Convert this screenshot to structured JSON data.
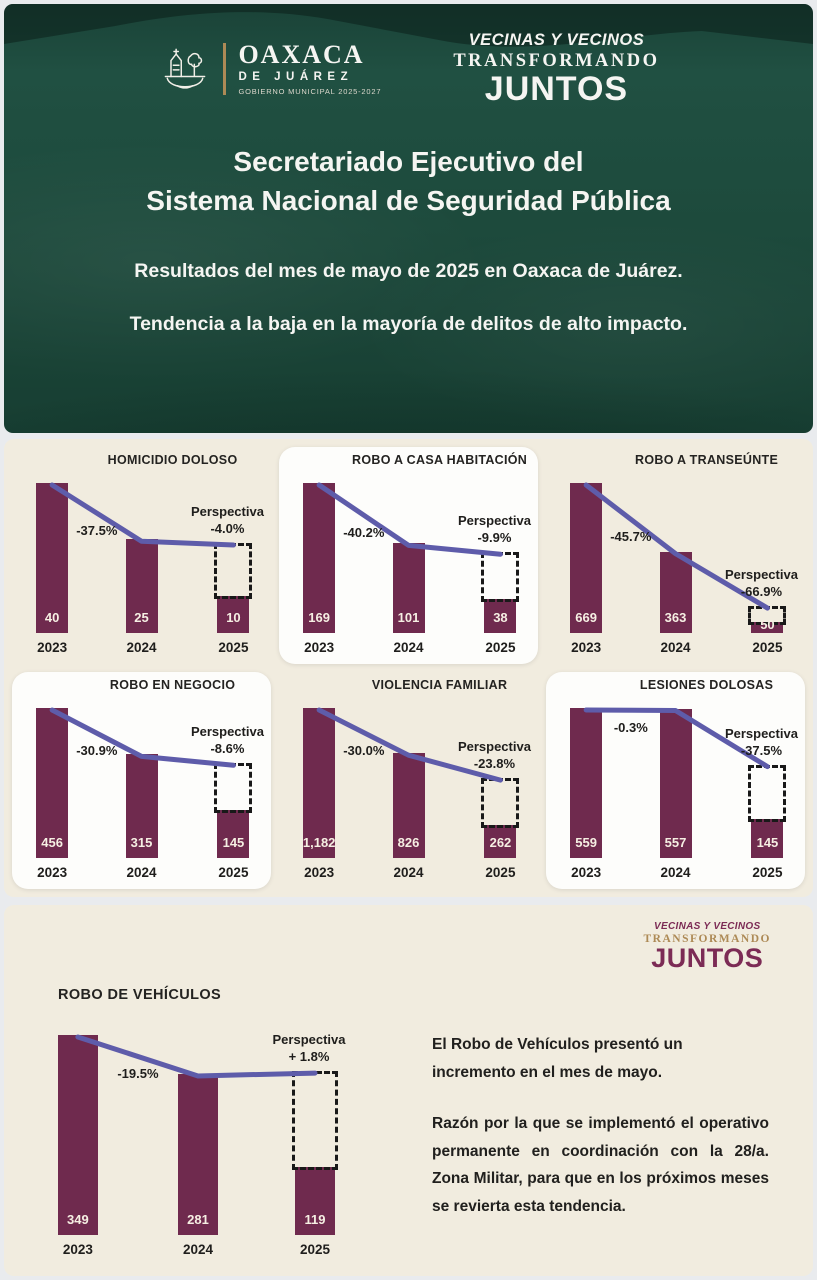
{
  "header": {
    "logo_left": {
      "name": "OAXACA",
      "sub": "DE JUÁREZ",
      "gov": "GOBIERNO MUNICIPAL 2025-2027"
    },
    "logo_right": {
      "line1": "VECINAS Y VECINOS",
      "line2": "TRANSFORMANDO",
      "line3": "JUNTOS"
    },
    "title_line1": "Secretariado Ejecutivo del",
    "title_line2": "Sistema Nacional de Seguridad Pública",
    "subtitle1": "Resultados del mes de mayo de 2025 en Oaxaca de Juárez.",
    "subtitle2": "Tendencia a la baja en la mayoría de delitos de alto impacto."
  },
  "colors": {
    "bar": "#6f2a4e",
    "line": "#5e5caa",
    "beige": "#f1ecdf",
    "green": "#1c4538",
    "maroon": "#7c2b55",
    "gold": "#ad8a56"
  },
  "chart_data": [
    {
      "type": "bar",
      "title": "HOMICIDIO DOLOSO",
      "categories": [
        "2023",
        "2024",
        "2025"
      ],
      "values": [
        40,
        25,
        10
      ],
      "value_labels": [
        "40",
        "25",
        "10"
      ],
      "change_label": "-37.5%",
      "perspective_label": "Perspectiva",
      "perspective_value": "-4.0%",
      "perspective_pct": -4.0,
      "highlight_card": false
    },
    {
      "type": "bar",
      "title": "ROBO A CASA HABITACIÓN",
      "categories": [
        "2023",
        "2024",
        "2025"
      ],
      "values": [
        169,
        101,
        38
      ],
      "value_labels": [
        "169",
        "101",
        "38"
      ],
      "change_label": "-40.2%",
      "perspective_label": "Perspectiva",
      "perspective_value": "-9.9%",
      "perspective_pct": -9.9,
      "highlight_card": true
    },
    {
      "type": "bar",
      "title": "ROBO A TRANSEÚNTE",
      "categories": [
        "2023",
        "2024",
        "2025"
      ],
      "values": [
        669,
        363,
        50
      ],
      "value_labels": [
        "669",
        "363",
        "50"
      ],
      "change_label": "-45.7%",
      "perspective_label": "Perspectiva",
      "perspective_value": "-66.9%",
      "perspective_pct": -66.9,
      "highlight_card": false
    },
    {
      "type": "bar",
      "title": "ROBO EN NEGOCIO",
      "categories": [
        "2023",
        "2024",
        "2025"
      ],
      "values": [
        456,
        315,
        145
      ],
      "value_labels": [
        "456",
        "315",
        "145"
      ],
      "change_label": "-30.9%",
      "perspective_label": "Perspectiva",
      "perspective_value": "-8.6%",
      "perspective_pct": -8.6,
      "highlight_card": true
    },
    {
      "type": "bar",
      "title": "VIOLENCIA FAMILIAR",
      "categories": [
        "2023",
        "2024",
        "2025"
      ],
      "values": [
        1182,
        826,
        262
      ],
      "value_labels": [
        "1,182",
        "826",
        "262"
      ],
      "change_label": "-30.0%",
      "perspective_label": "Perspectiva",
      "perspective_value": "-23.8%",
      "perspective_pct": -23.8,
      "highlight_card": false
    },
    {
      "type": "bar",
      "title": "LESIONES DOLOSAS",
      "categories": [
        "2023",
        "2024",
        "2025"
      ],
      "values": [
        559,
        557,
        145
      ],
      "value_labels": [
        "559",
        "557",
        "145"
      ],
      "change_label": "-0.3%",
      "perspective_label": "Perspectiva",
      "perspective_value": "-37.5%",
      "perspective_pct": -37.5,
      "highlight_card": true
    },
    {
      "type": "bar",
      "title": "ROBO DE VEHÍCULOS",
      "categories": [
        "2023",
        "2024",
        "2025"
      ],
      "values": [
        349,
        281,
        119
      ],
      "value_labels": [
        "349",
        "281",
        "119"
      ],
      "change_label": "-19.5%",
      "perspective_label": "Perspectiva",
      "perspective_value": "+ 1.8%",
      "perspective_pct": 1.8,
      "highlight_card": false
    }
  ],
  "footer": {
    "logo": {
      "line1": "VECINAS Y VECINOS",
      "line2": "TRANSFORMANDO",
      "line3": "JUNTOS"
    },
    "paragraph1": "El Robo de Vehículos presentó un incremento en el mes de mayo.",
    "paragraph2": "Razón por la que se implementó el operativo permanente en coordinación con la 28/a. Zona Militar, para que en los próximos meses se revierta esta tendencia."
  }
}
